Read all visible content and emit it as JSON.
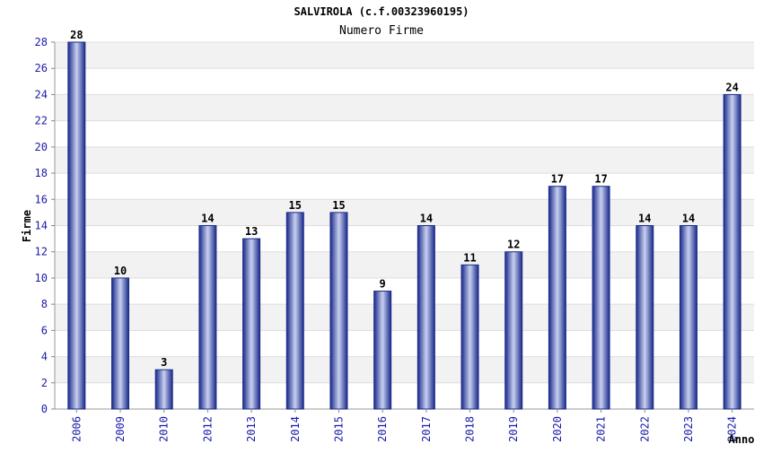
{
  "chart_data": {
    "type": "bar",
    "title": "SALVIROLA (c.f.00323960195)",
    "subtitle": "Numero Firme",
    "xlabel": "Anno",
    "ylabel": "Firme",
    "categories": [
      "2006",
      "2009",
      "2010",
      "2012",
      "2013",
      "2014",
      "2015",
      "2016",
      "2017",
      "2018",
      "2019",
      "2020",
      "2021",
      "2022",
      "2023",
      "2024"
    ],
    "values": [
      28,
      10,
      3,
      14,
      13,
      15,
      15,
      9,
      14,
      11,
      12,
      17,
      17,
      14,
      14,
      24
    ],
    "ylim": [
      0,
      28
    ],
    "yticks": [
      0,
      2,
      4,
      6,
      8,
      10,
      12,
      14,
      16,
      18,
      20,
      22,
      24,
      26,
      28
    ],
    "grid": true,
    "bar_color": "#1a2a8a",
    "bar_highlight": "#c8d0f0"
  }
}
